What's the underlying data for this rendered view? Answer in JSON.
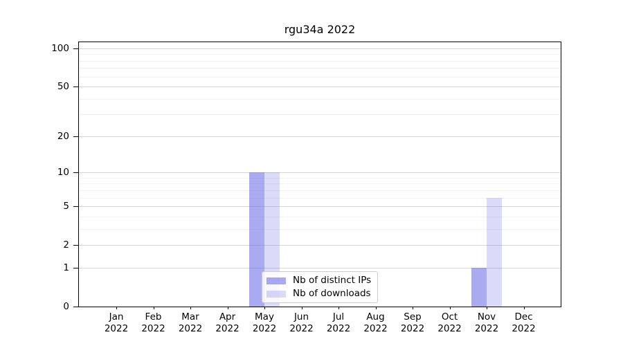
{
  "chart_data": {
    "type": "bar",
    "title": "rgu34a 2022",
    "x_tick_months": [
      "Jan",
      "Feb",
      "Mar",
      "Apr",
      "May",
      "Jun",
      "Jul",
      "Aug",
      "Sep",
      "Oct",
      "Nov",
      "Dec"
    ],
    "x_tick_year": "2022",
    "series": [
      {
        "name": "Nb of distinct IPs",
        "color": "#6464e6",
        "alpha": 0.55,
        "values": [
          0,
          0,
          0,
          0,
          10,
          0,
          0,
          0,
          0,
          0,
          1,
          0
        ]
      },
      {
        "name": "Nb of downloads",
        "color": "#6464e6",
        "alpha": 0.24,
        "values": [
          0,
          0,
          0,
          0,
          10,
          0,
          0,
          0,
          0,
          0,
          6,
          0
        ]
      }
    ],
    "y_ticks_labeled": [
      0,
      1,
      2,
      5,
      10,
      20,
      50,
      100
    ],
    "y_minor_gridlines": [
      3,
      4,
      6,
      7,
      8,
      9,
      30,
      40,
      60,
      70,
      80,
      90
    ],
    "y_scale": "log10(1+v)",
    "ylim": [
      0,
      112
    ],
    "xlabel": "",
    "ylabel": "",
    "grid": "horizontal, major and minor",
    "legend_position": "lower center, inside axes",
    "colors": {
      "grid_major": "#d7d7d7",
      "grid_minor": "#f0f0f0",
      "axes_spine": "#000000",
      "legend_border": "#cccccc"
    }
  }
}
